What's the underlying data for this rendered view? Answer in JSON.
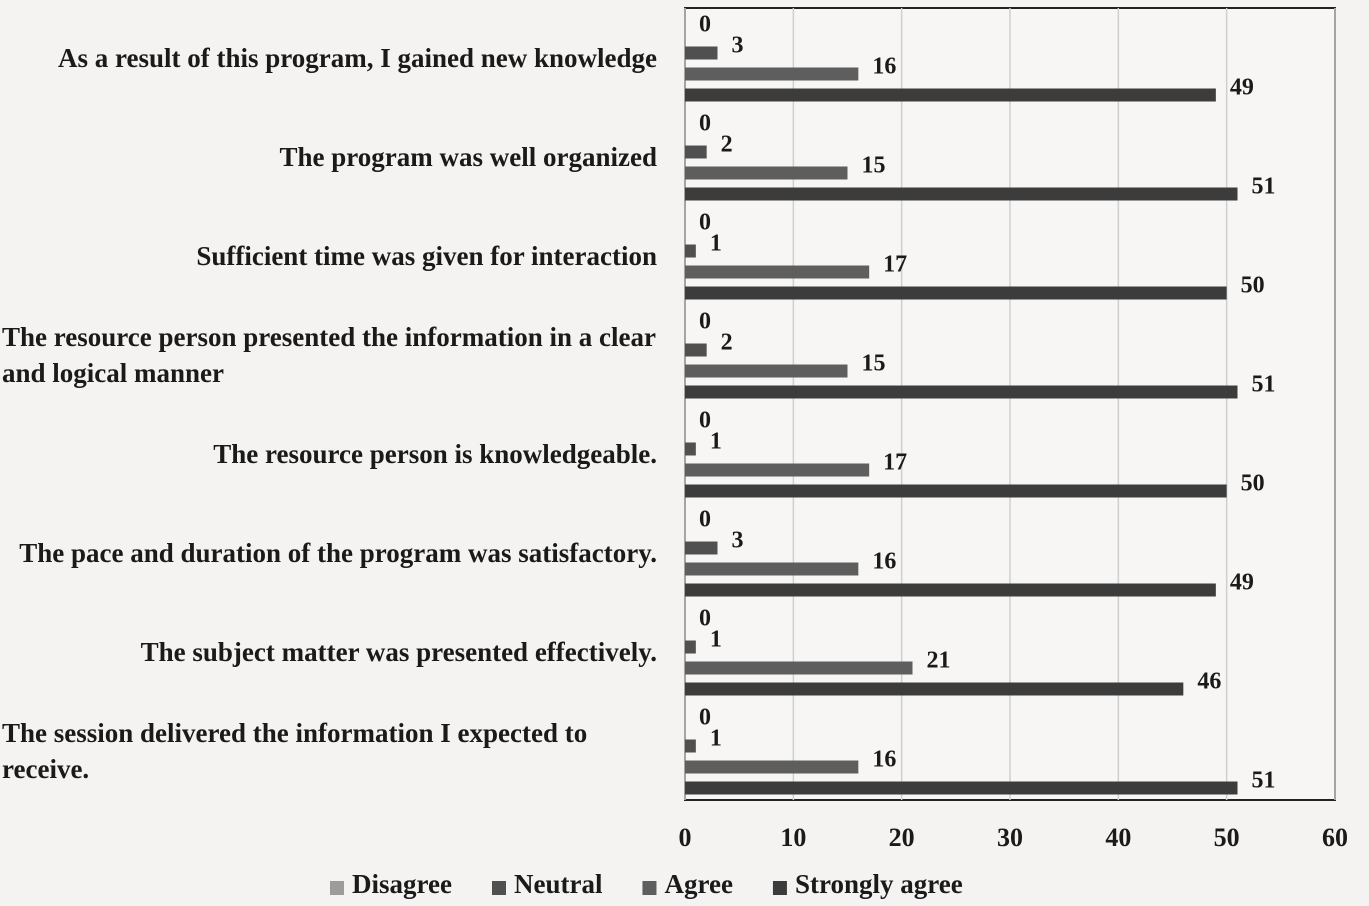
{
  "chart_data": {
    "type": "bar",
    "orientation": "horizontal",
    "categories": [
      "As a result of this program, I gained new knowledge",
      "The program was well organized",
      "Sufficient time was given for interaction",
      "The resource person presented the information in a clear and logical manner",
      "The resource person is knowledgeable.",
      "The pace and duration of the program was satisfactory.",
      "The subject matter was presented effectively.",
      "The session delivered the information I expected to receive."
    ],
    "series": [
      {
        "name": "Disagree",
        "color": "#9c9c9c",
        "values": [
          0,
          0,
          0,
          0,
          0,
          0,
          0,
          0
        ]
      },
      {
        "name": "Neutral",
        "color": "#505050",
        "values": [
          3,
          2,
          1,
          2,
          1,
          3,
          1,
          1
        ]
      },
      {
        "name": "Agree",
        "color": "#5e5e5e",
        "values": [
          16,
          15,
          17,
          15,
          17,
          16,
          21,
          16
        ]
      },
      {
        "name": "Strongly agree",
        "color": "#3c3c3c",
        "values": [
          49,
          51,
          50,
          51,
          50,
          49,
          46,
          51
        ]
      }
    ],
    "xlim": [
      0,
      60
    ],
    "xticks": [
      0,
      10,
      20,
      30,
      40,
      50,
      60
    ],
    "grid": true,
    "legend": "bottom"
  }
}
